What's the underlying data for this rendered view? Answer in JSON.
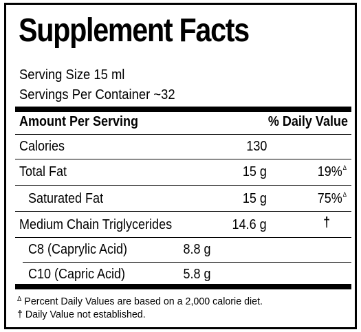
{
  "title": "Supplement Facts",
  "serving": {
    "size": "Serving Size 15 ml",
    "per_container": "Servings Per Container ~32"
  },
  "header": {
    "amount_label": "Amount Per Serving",
    "dv_label": "% Daily Value"
  },
  "rows": [
    {
      "name": "Calories",
      "amount": "130",
      "dv": "",
      "dv_mark": ""
    },
    {
      "name": "Total Fat",
      "amount": "15 g",
      "dv": "19%",
      "dv_mark": "Δ"
    },
    {
      "name": "Saturated Fat",
      "amount": "15 g",
      "dv": "75%",
      "dv_mark": "Δ"
    },
    {
      "name": "Medium Chain Triglycerides",
      "amount": "14.6 g",
      "dv": "†",
      "dv_mark": ""
    },
    {
      "name": "C8 (Caprylic Acid)",
      "amount": "8.8 g",
      "dv": "",
      "dv_mark": ""
    },
    {
      "name": "C10 (Capric Acid)",
      "amount": "5.8 g",
      "dv": "",
      "dv_mark": ""
    }
  ],
  "footnotes": [
    {
      "mark": "Δ",
      "text": " Percent Daily Values are based on a 2,000 calorie diet."
    },
    {
      "mark": "†",
      "text": " Daily Value not established."
    }
  ]
}
